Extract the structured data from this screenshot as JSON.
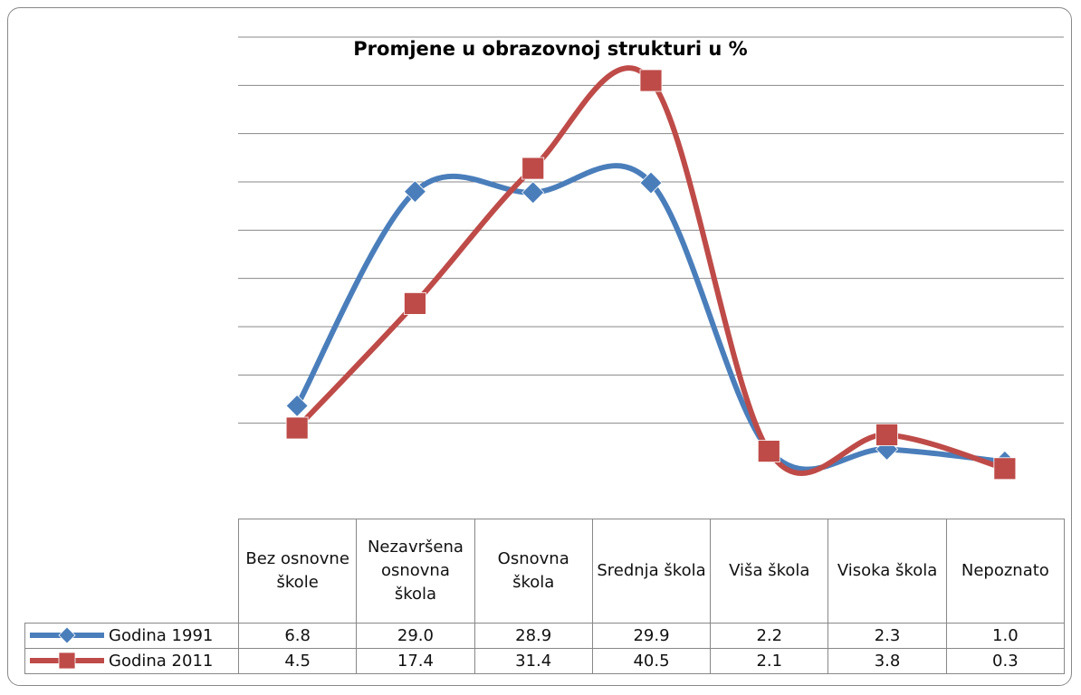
{
  "chart_data": {
    "type": "line",
    "title": "Promjene u obrazovnoj strukturi u %",
    "categories": [
      "Bez osnovne škole",
      "Nezavršena osnovna škola",
      "Osnovna škola",
      "Srednja škola",
      "Viša škola",
      "Visoka škola",
      "Nepoznato"
    ],
    "series": [
      {
        "name": "Godina 1991",
        "color": "#4a7ebb",
        "marker": "diamond",
        "values": [
          6.8,
          29.0,
          28.9,
          29.9,
          2.2,
          2.3,
          1.0
        ],
        "value_labels": [
          "6.8",
          "29.0",
          "28.9",
          "29.9",
          "2.2",
          "2.3",
          "1.0"
        ]
      },
      {
        "name": "Godina 2011",
        "color": "#be4b48",
        "marker": "square",
        "values": [
          4.5,
          17.4,
          31.4,
          40.5,
          2.1,
          3.8,
          0.3
        ],
        "value_labels": [
          "4.5",
          "17.4",
          "31.4",
          "40.5",
          "2.1",
          "3.8",
          "0.3"
        ]
      }
    ],
    "ylim": [
      0,
      45
    ],
    "yticks": [
      5,
      10,
      15,
      20,
      25,
      30,
      35,
      40,
      45
    ],
    "grid": true,
    "smooth": true
  }
}
